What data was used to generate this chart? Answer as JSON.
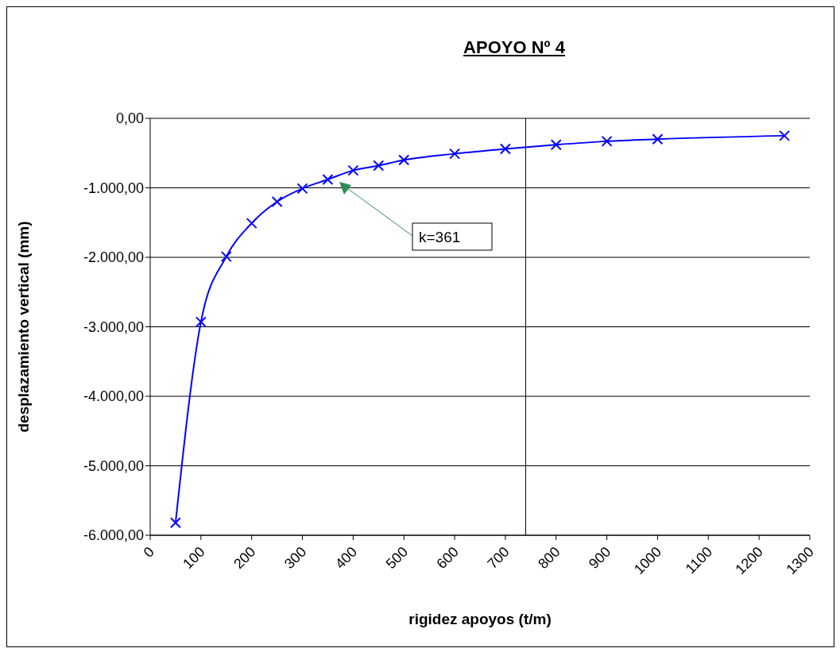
{
  "chart_data": {
    "type": "line",
    "title": "APOYO Nº 4",
    "xlabel": "rigidez apoyos (t/m)",
    "ylabel": "desplazamiento vertical (mm)",
    "x": [
      50,
      100,
      150,
      200,
      250,
      300,
      350,
      400,
      450,
      500,
      600,
      700,
      800,
      900,
      1000,
      1250
    ],
    "series": [
      {
        "color": "#0000ff",
        "values": [
          -5820,
          -2930,
          -1990,
          -1510,
          -1200,
          -1010,
          -880,
          -750,
          -680,
          -600,
          -510,
          -440,
          -380,
          -330,
          -300,
          -250
        ]
      }
    ],
    "xlim": [
      0,
      1300
    ],
    "xticks": [
      0,
      100,
      200,
      300,
      400,
      500,
      600,
      700,
      800,
      900,
      1000,
      1100,
      1200,
      1300
    ],
    "ylim": [
      -6000,
      0
    ],
    "yticks": [
      {
        "value": 0,
        "label": "0,00"
      },
      {
        "value": -1000,
        "label": "-1.000,00"
      },
      {
        "value": -2000,
        "label": "-2.000,00"
      },
      {
        "value": -3000,
        "label": "-3.000,00"
      },
      {
        "value": -4000,
        "label": "-4.000,00"
      },
      {
        "value": -5000,
        "label": "-5.000,00"
      },
      {
        "value": -6000,
        "label": "-6.000,00"
      }
    ],
    "ref_lines": [
      {
        "axis": "x",
        "value": 740,
        "color": "#000000"
      }
    ],
    "annotations": [
      "k=361"
    ],
    "grid": "y",
    "legend": false,
    "marker": "cross",
    "line_style": "solid"
  }
}
